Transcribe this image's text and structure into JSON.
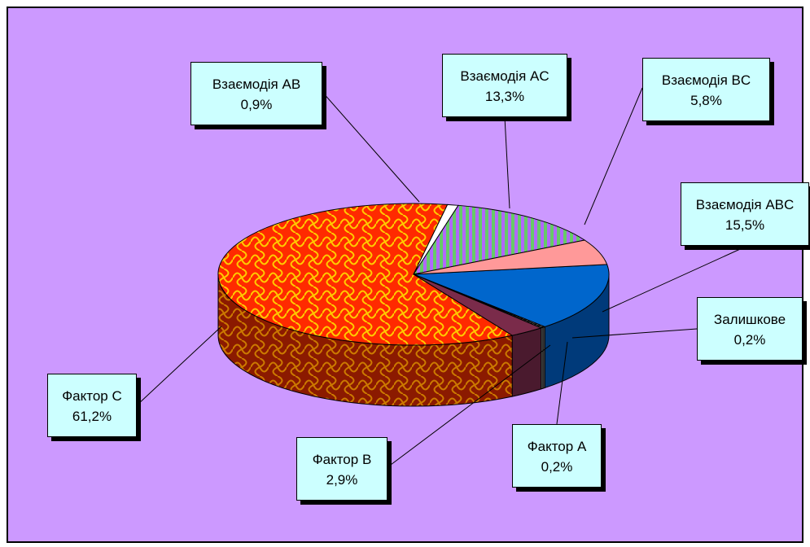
{
  "chart_data": {
    "type": "pie",
    "title": "",
    "categories": [
      "Фактор A",
      "Фактор B",
      "Фактор C",
      "Взаємодія AB",
      "Взаємодія AC",
      "Взаємодія BC",
      "Взаємодія ABC",
      "Залишкове"
    ],
    "values": [
      0.2,
      2.9,
      61.2,
      0.9,
      13.3,
      5.8,
      15.5,
      0.2
    ],
    "value_labels": [
      "0,2%",
      "2,9%",
      "61,2%",
      "0,9%",
      "13,3%",
      "5,8%",
      "15,5%",
      "0,2%"
    ],
    "legend": "none",
    "colors": {
      "factor_a": "#b0b0b0",
      "factor_b": "#8b2252",
      "factor_c": "#ff3300",
      "interaction_ab": "#ffffff",
      "interaction_ac": "#66cc66",
      "interaction_bc": "#ff9999",
      "interaction_abc": "#0066cc",
      "residual": "#888888",
      "background": "#cc99ff",
      "label_fill": "#ccffff"
    }
  }
}
